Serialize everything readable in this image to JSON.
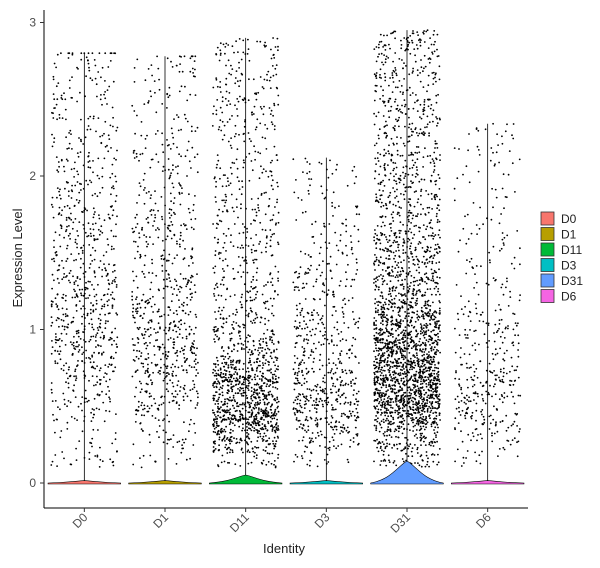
{
  "chart_data": {
    "type": "violin",
    "title": "",
    "xlabel": "Identity",
    "ylabel": "Expression Level",
    "ylim": [
      -0.15,
      3.05
    ],
    "yticks": [
      0,
      1,
      2,
      3
    ],
    "grid": false,
    "legend_position": "right",
    "categories": [
      "D0",
      "D1",
      "D11",
      "D3",
      "D31",
      "D6"
    ],
    "series": [
      {
        "name": "D0",
        "color": "#F8766D",
        "max": 2.8,
        "point_count": 820,
        "median_nonzero": 1.2,
        "violin_peak": 0.012
      },
      {
        "name": "D1",
        "color": "#B79F00",
        "max": 2.78,
        "point_count": 760,
        "median_nonzero": 1.0,
        "violin_peak": 0.012
      },
      {
        "name": "D11",
        "color": "#00BA38",
        "max": 2.9,
        "point_count": 1500,
        "median_nonzero": 0.55,
        "violin_peak": 0.04
      },
      {
        "name": "D3",
        "color": "#00BFC4",
        "max": 2.12,
        "point_count": 650,
        "median_nonzero": 0.6,
        "violin_peak": 0.012
      },
      {
        "name": "D31",
        "color": "#619CFF",
        "max": 2.95,
        "point_count": 2600,
        "median_nonzero": 0.8,
        "violin_peak": 0.11
      },
      {
        "name": "D6",
        "color": "#F564E3",
        "max": 2.34,
        "point_count": 420,
        "median_nonzero": 0.7,
        "violin_peak": 0.012
      }
    ]
  }
}
